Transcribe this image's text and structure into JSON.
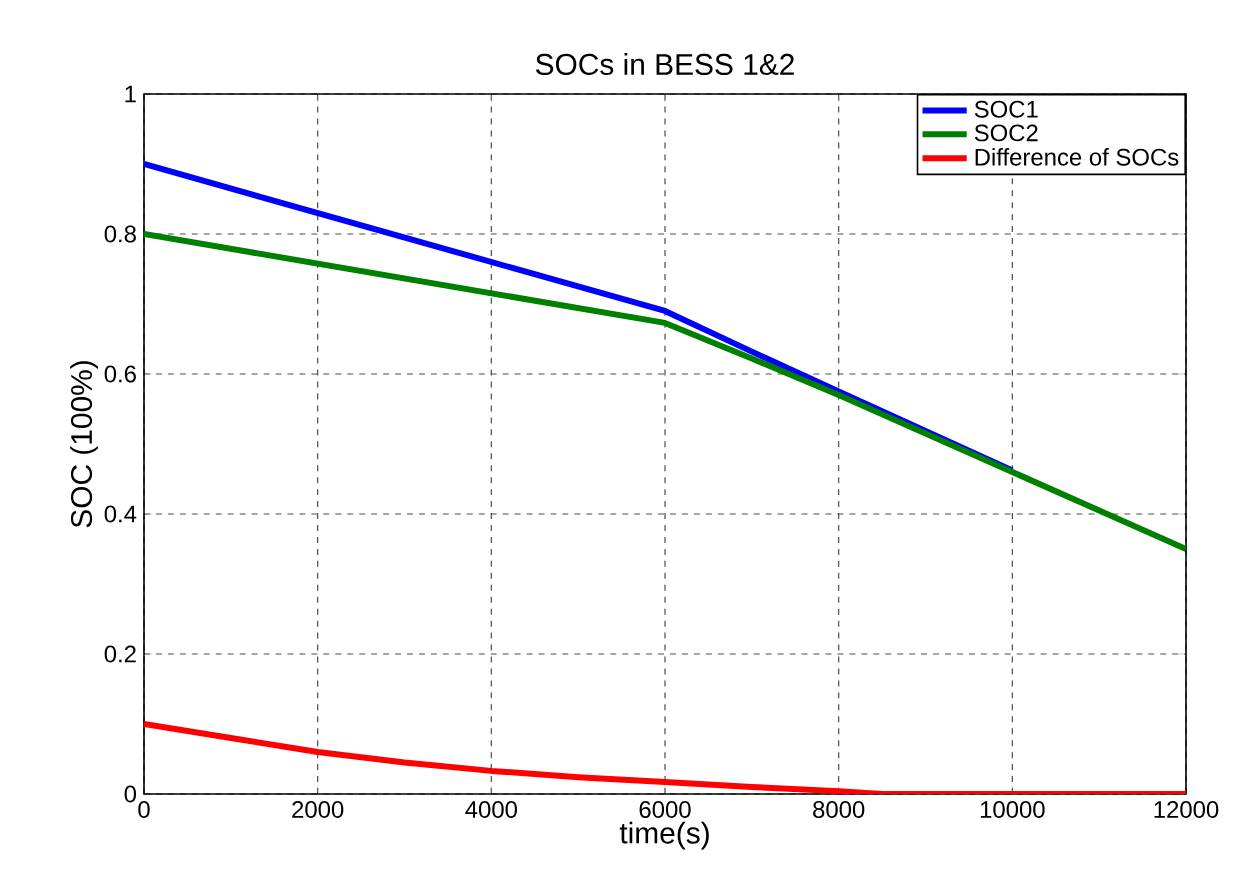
{
  "chart_data": {
    "type": "line",
    "title": "SOCs in BESS 1&2",
    "xlabel": "time(s)",
    "ylabel": "SOC (100%)",
    "xlim": [
      0,
      12000
    ],
    "ylim": [
      0,
      1
    ],
    "xticks": [
      0,
      2000,
      4000,
      6000,
      8000,
      10000,
      12000
    ],
    "yticks": [
      0,
      0.2,
      0.4,
      0.6,
      0.8,
      1
    ],
    "grid": true,
    "legend": "top right",
    "line_style": "solid",
    "marker": "none",
    "series": [
      {
        "name": "SOC1",
        "color": "#0000ff",
        "x": [
          0,
          6000,
          7000,
          8000,
          10000
        ],
        "values": [
          0.9,
          0.69,
          0.632,
          0.575,
          0.462
        ]
      },
      {
        "name": "SOC2",
        "color": "#008000",
        "x": [
          0,
          6000,
          7000,
          8000,
          10000,
          12000
        ],
        "values": [
          0.8,
          0.673,
          0.622,
          0.57,
          0.46,
          0.35
        ]
      },
      {
        "name": "Difference of SOCs",
        "color": "#ff0000",
        "x": [
          0,
          1000,
          2000,
          3000,
          4000,
          5000,
          6000,
          7000,
          8000,
          8500,
          12000
        ],
        "values": [
          0.1,
          0.08,
          0.06,
          0.045,
          0.033,
          0.024,
          0.017,
          0.01,
          0.004,
          0,
          0
        ]
      }
    ]
  }
}
